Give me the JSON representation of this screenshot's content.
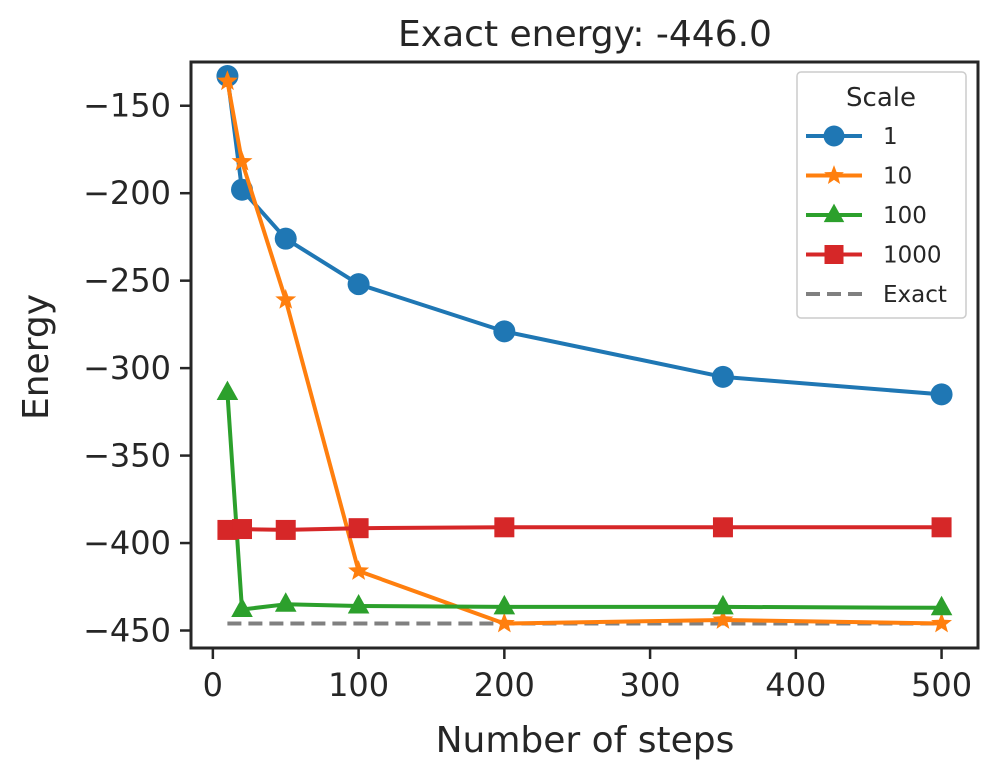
{
  "chart_data": {
    "type": "line",
    "title": "Exact energy: -446.0",
    "xlabel": "Number of steps",
    "ylabel": "Energy",
    "xlim": [
      -15,
      525
    ],
    "ylim": [
      -460,
      -125
    ],
    "x_ticks": [
      0,
      100,
      200,
      300,
      400,
      500
    ],
    "x_tick_labels": [
      "0",
      "100",
      "200",
      "300",
      "400",
      "500"
    ],
    "y_ticks": [
      -150,
      -200,
      -250,
      -300,
      -350,
      -400,
      -450
    ],
    "y_tick_labels": [
      "−150",
      "−200",
      "−250",
      "−300",
      "−350",
      "−400",
      "−450"
    ],
    "grid": false,
    "legend": {
      "title": "Scale",
      "position": "top-right"
    },
    "x": [
      10,
      20,
      50,
      100,
      200,
      350,
      500
    ],
    "series": [
      {
        "name": "1",
        "color": "#1f77b4",
        "marker": "circle",
        "dashed": false,
        "values": [
          -133,
          -198,
          -226,
          -252,
          -279,
          -305,
          -315
        ]
      },
      {
        "name": "10",
        "color": "#ff7f0e",
        "marker": "star",
        "dashed": false,
        "values": [
          -136,
          -182,
          -261,
          -416,
          -446,
          -444,
          -446
        ]
      },
      {
        "name": "100",
        "color": "#2ca02c",
        "marker": "triangle",
        "dashed": false,
        "values": [
          -314,
          -438,
          -435,
          -436,
          -436.5,
          -436.5,
          -437
        ]
      },
      {
        "name": "1000",
        "color": "#d62728",
        "marker": "square",
        "dashed": false,
        "values": [
          -392.5,
          -392,
          -392.5,
          -391.5,
          -391,
          -391,
          -391
        ]
      },
      {
        "name": "Exact",
        "color": "#808080",
        "marker": "none",
        "dashed": true,
        "values": [
          -446,
          -446,
          -446,
          -446,
          -446,
          -446,
          -446
        ]
      }
    ]
  }
}
